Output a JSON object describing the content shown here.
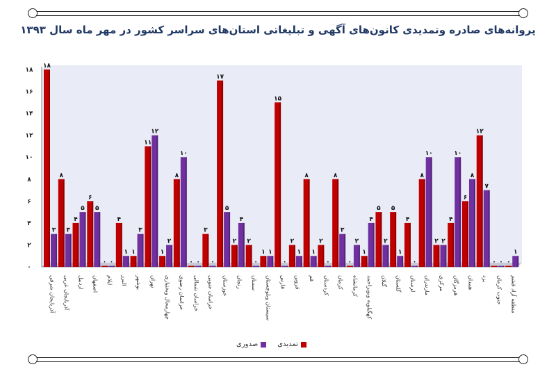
{
  "title": "پروانه‌های صادره وتمدیدی کانون‌های آگهی و تبلیغاتی استان‌های سراسر کشور در مهر ماه سال ۱۳۹۳",
  "colors": {
    "tamdidi": "#c00000",
    "sodoori": "#7030a0",
    "plot_bg": "#e9ecf6"
  },
  "chart_data": {
    "type": "bar",
    "title": "پروانه‌های صادره وتمدیدی کانون‌های آگهی و تبلیغاتی استان‌های سراسر کشور در مهر ماه سال ۱۳۹۳",
    "xlabel": "",
    "ylabel": "",
    "ylim": [
      0,
      18
    ],
    "yticks": [
      "۰",
      "۲",
      "۴",
      "۶",
      "۸",
      "۱۰",
      "۱۲",
      "۱۴",
      "۱۶",
      "۱۸"
    ],
    "categories": [
      "آذربایجان شرقی",
      "آذربایجان غربی",
      "اردبیل",
      "اصفهان",
      "ایلام",
      "البرز",
      "بوشهر",
      "تهران",
      "چهارمحال وبختیاری",
      "خراسان رضوی",
      "خراسان شمالی",
      "خراسان جنوبی",
      "خوزستان",
      "زنجان",
      "سمنان",
      "سیستان وبلوچستان",
      "فارس",
      "قزوین",
      "قم",
      "کردستان",
      "کرمان",
      "کرمانشاه",
      "کهگیلویه وبویراحمد",
      "گیلان",
      "گلستان",
      "لرستان",
      "مازندران",
      "مرکزی",
      "هرمزگان",
      "همدان",
      "یزد",
      "جنوب کرمان",
      "منطقه آزاد قشم"
    ],
    "series": [
      {
        "name": "تمدیدی",
        "values": [
          18,
          8,
          4,
          6,
          0,
          4,
          1,
          11,
          1,
          8,
          0,
          3,
          17,
          2,
          2,
          1,
          15,
          2,
          8,
          2,
          8,
          0,
          1,
          5,
          5,
          4,
          8,
          2,
          4,
          6,
          12,
          0,
          0
        ],
        "labels": [
          "۱۸",
          "۸",
          "۴",
          "۶",
          "۰",
          "۴",
          "۱",
          "۱۱",
          "۱",
          "۸",
          "۰",
          "۳",
          "۱۷",
          "۲",
          "۲",
          "۱",
          "۱۵",
          "۲",
          "۸",
          "۲",
          "۸",
          "۰",
          "۱",
          "۵",
          "۵",
          "۴",
          "۸",
          "۲",
          "۴",
          "۶",
          "۱۲",
          "۰",
          "۰"
        ]
      },
      {
        "name": "صدوری",
        "values": [
          3,
          3,
          5,
          5,
          0,
          1,
          3,
          12,
          2,
          10,
          0,
          0,
          5,
          4,
          0,
          1,
          0,
          1,
          1,
          0,
          3,
          2,
          4,
          2,
          1,
          0,
          10,
          2,
          10,
          8,
          7,
          0,
          1
        ],
        "labels": [
          "۳",
          "۳",
          "۵",
          "۵",
          "۰",
          "۱",
          "۳",
          "۱۲",
          "۲",
          "۱۰",
          "۰",
          "۰",
          "۵",
          "۴",
          "۰",
          "۱",
          "۰",
          "۱",
          "۱",
          "۰",
          "۳",
          "۲",
          "۴",
          "۲",
          "۱",
          "۰",
          "۱۰",
          "۲",
          "۱۰",
          "۸",
          "۷",
          "۰",
          "۱"
        ]
      }
    ],
    "legend": [
      "تمدیدی",
      "صدوری"
    ],
    "legend_position": "bottom",
    "grid": false
  }
}
